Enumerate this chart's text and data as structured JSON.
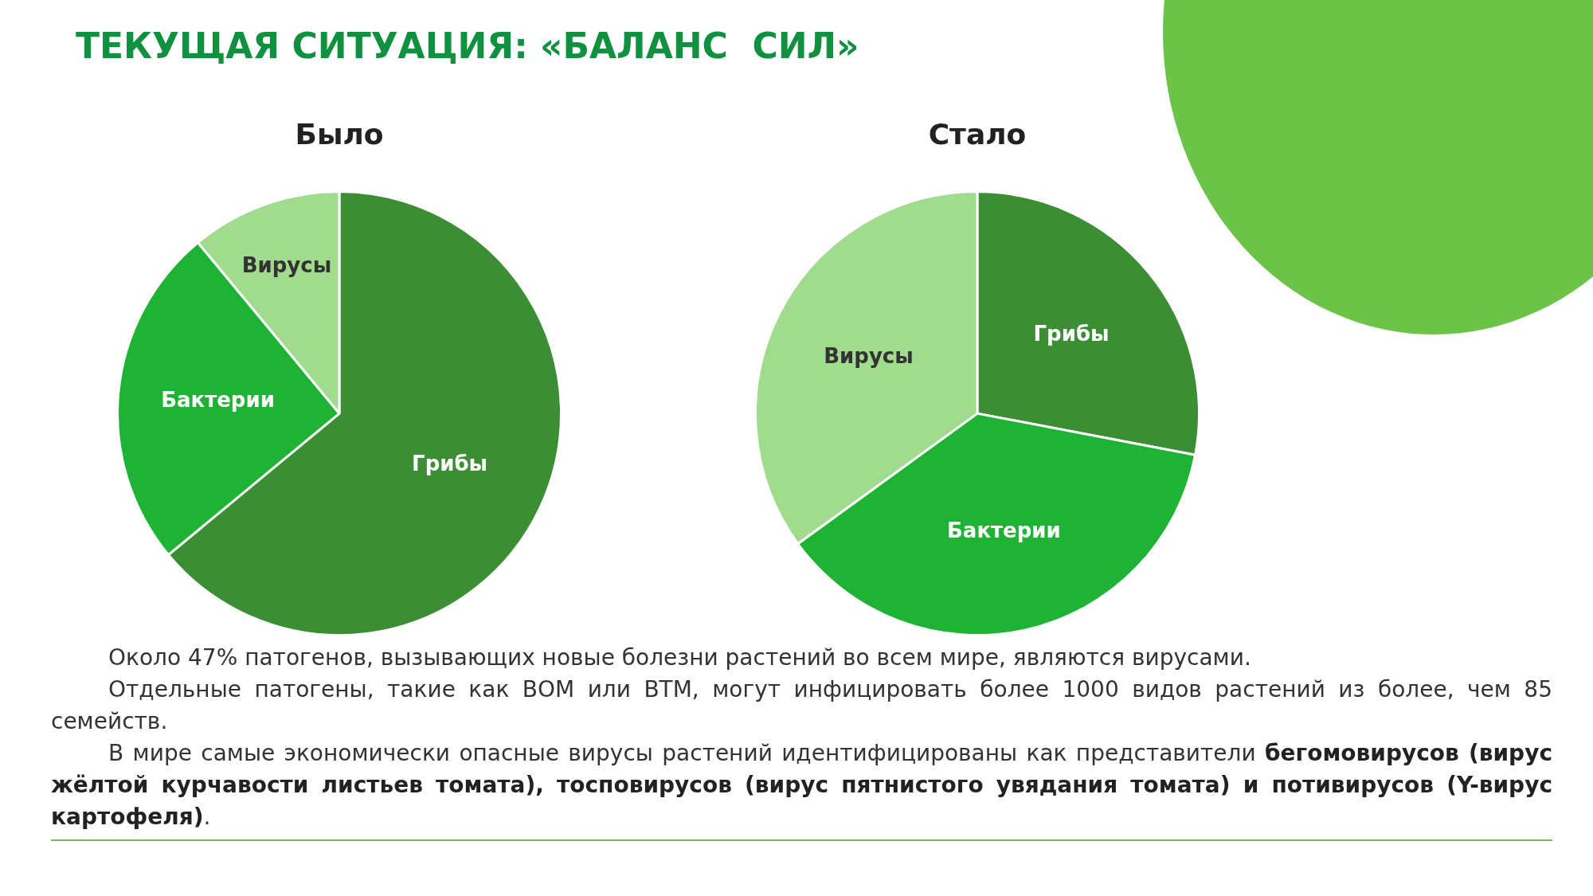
{
  "chart_data": [
    {
      "type": "other",
      "title": "ТЕКУЩАЯ СИТУАЦИЯ: «БАЛАНС  СИЛ»",
      "annotations": [
        "Около 47% патогенов, вызывающих новые болезни растений во всем мире, являются вирусами.",
        "Отдельные патогены, такие как ВОМ или ВТМ, могут инфицировать более 1000 видов растений из более, чем 85 семейств.",
        "В мире самые экономически опасные вирусы растений идентифицированы как представители ",
        "бегомовирусов (вирус жёлтой курчавости листьев томата), тосповирусов (вирус пятнистого увядания томата) и потивирусов (Y-вирус картофеля)",
        "."
      ]
    },
    {
      "type": "pie",
      "title": "Было",
      "categories": [
        "Грибы",
        "Бактерии",
        "Вирусы"
      ],
      "values": [
        64,
        25,
        11
      ],
      "colors": [
        "#3b8e34",
        "#1fb336",
        "#a0db8e"
      ]
    },
    {
      "type": "pie",
      "title": "Стало",
      "categories": [
        "Грибы",
        "Бактерии",
        "Вирусы"
      ],
      "values": [
        28,
        37,
        35
      ],
      "colors": [
        "#3b8e34",
        "#1fb336",
        "#a0db8e"
      ]
    }
  ]
}
